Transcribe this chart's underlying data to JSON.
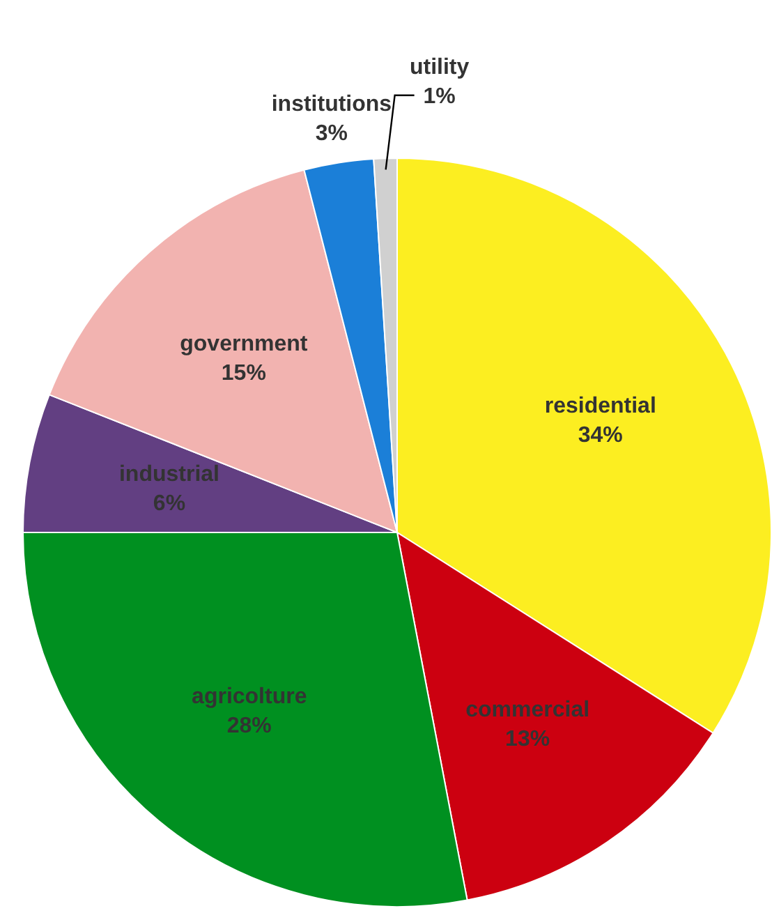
{
  "chart_data": {
    "type": "pie",
    "categories": [
      "residential",
      "commercial",
      "agricolture",
      "industrial",
      "government",
      "institutions",
      "utility"
    ],
    "values": [
      34,
      13,
      28,
      6,
      15,
      3,
      1
    ],
    "colors": [
      "#fcee21",
      "#cc0010",
      "#009020",
      "#623f82",
      "#f2b3b0",
      "#1b7fd8",
      "#d0d0d0"
    ],
    "value_labels": [
      "34%",
      "13%",
      "28%",
      "6%",
      "15%",
      "3%",
      "1%"
    ],
    "legend": false
  }
}
